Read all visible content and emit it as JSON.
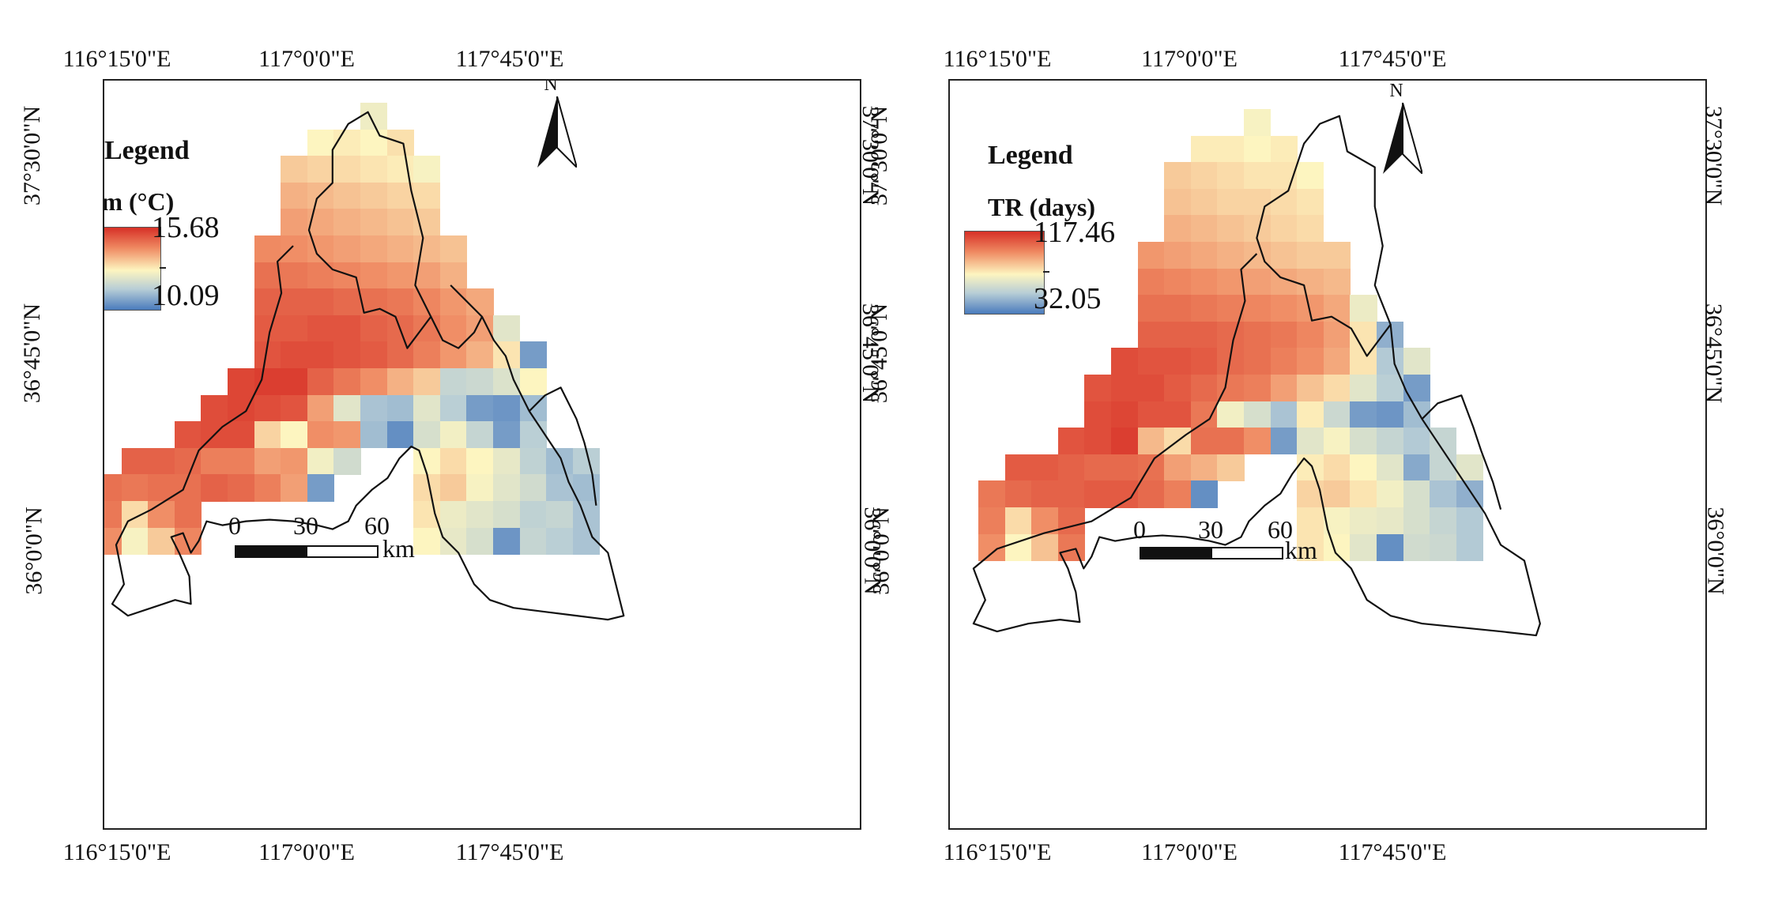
{
  "colors": {
    "high": "#d73027",
    "mid_high": "#ef8a62",
    "mid": "#fdf5c0",
    "mid_low": "#b7cdd6",
    "low": "#4a7bbd"
  },
  "panels": [
    {
      "id": "left",
      "legend_title": "Legend",
      "variable": "Tm (°C)",
      "max_label": "15.68",
      "min_label": "10.09",
      "north_label": "N",
      "ticks_top": [
        "116°15'0\"E",
        "117°0'0\"E",
        "117°45'0\"E"
      ],
      "ticks_bottom": [
        "116°15'0\"E",
        "117°0'0\"E",
        "117°45'0\"E"
      ],
      "ticks_left": [
        "37°30'0\"N",
        "36°45'0\"N",
        "36°0'0\"N"
      ],
      "ticks_right": [
        "37°30'0\"N",
        "36°45'0\"N",
        "36°0'0\"N"
      ],
      "scale": {
        "labels": [
          "0",
          "30",
          "60"
        ],
        "unit": "km"
      },
      "grid_values": [
        [
          "",
          "",
          "",
          "",
          "",
          "",
          "",
          "",
          "",
          "",
          "0.45",
          "",
          "",
          "",
          "",
          "",
          "",
          "",
          "",
          ""
        ],
        [
          "",
          "",
          "",
          "",
          "",
          "",
          "",
          "",
          "0.50",
          "0.52",
          "0.50",
          "0.55",
          "",
          "",
          "",
          "",
          "",
          "",
          "",
          ""
        ],
        [
          "",
          "",
          "",
          "",
          "",
          "",
          "",
          "0.60",
          "0.58",
          "0.56",
          "0.54",
          "0.52",
          "0.48",
          "",
          "",
          "",
          "",
          "",
          "",
          ""
        ],
        [
          "",
          "",
          "",
          "",
          "",
          "",
          "",
          "0.66",
          "0.64",
          "0.62",
          "0.60",
          "0.58",
          "0.56",
          "",
          "",
          "",
          "",
          "",
          "",
          ""
        ],
        [
          "",
          "",
          "",
          "",
          "",
          "",
          "",
          "0.70",
          "0.68",
          "0.66",
          "0.64",
          "0.62",
          "0.60",
          "",
          "",
          "",
          "",
          "",
          "",
          ""
        ],
        [
          "",
          "",
          "",
          "",
          "",
          "",
          "0.75",
          "0.74",
          "0.72",
          "0.70",
          "0.68",
          "0.66",
          "0.64",
          "0.62",
          "",
          "",
          "",
          "",
          "",
          ""
        ],
        [
          "",
          "",
          "",
          "",
          "",
          "",
          "0.82",
          "0.80",
          "0.78",
          "0.76",
          "0.74",
          "0.72",
          "0.70",
          "0.66",
          "",
          "",
          "",
          "",
          "",
          ""
        ],
        [
          "",
          "",
          "",
          "",
          "",
          "",
          "0.86",
          "0.86",
          "0.86",
          "0.84",
          "0.82",
          "0.80",
          "0.76",
          "0.72",
          "0.68",
          "",
          "",
          "",
          "",
          ""
        ],
        [
          "",
          "",
          "",
          "",
          "",
          "",
          "0.88",
          "0.88",
          "0.90",
          "0.90",
          "0.86",
          "0.84",
          "0.80",
          "0.74",
          "0.70",
          "0.40",
          "",
          "",
          "",
          ""
        ],
        [
          "",
          "",
          "",
          "",
          "",
          "",
          "0.90",
          "0.92",
          "0.92",
          "0.90",
          "0.88",
          "0.84",
          "0.78",
          "0.72",
          "0.66",
          "0.54",
          "0.10",
          "",
          "",
          ""
        ],
        [
          "",
          "",
          "",
          "",
          "",
          "0.94",
          "0.96",
          "0.96",
          "0.86",
          "0.80",
          "0.74",
          "0.66",
          "0.60",
          "0.30",
          "0.32",
          "0.38",
          "0.50",
          "",
          "",
          ""
        ],
        [
          "",
          "",
          "",
          "",
          "0.92",
          "0.94",
          "0.92",
          "0.90",
          "0.70",
          "0.40",
          "0.22",
          "0.20",
          "0.40",
          "0.26",
          "0.10",
          "0.08",
          "0.20",
          "",
          "",
          ""
        ],
        [
          "",
          "",
          "",
          "0.90",
          "0.92",
          "0.92",
          "0.58",
          "0.50",
          "0.74",
          "0.72",
          "0.20",
          "0.06",
          "0.36",
          "0.46",
          "0.30",
          "0.10",
          "0.26",
          "",
          "",
          ""
        ],
        [
          "",
          "0.86",
          "0.86",
          "0.84",
          "0.78",
          "0.78",
          "0.70",
          "0.72",
          "0.46",
          "0.34",
          "",
          "",
          "0.50",
          "0.56",
          "0.50",
          "0.42",
          "0.28",
          "0.20",
          "0.26",
          ""
        ],
        [
          "0.82",
          "0.80",
          "0.82",
          "0.82",
          "0.86",
          "0.84",
          "0.78",
          "0.70",
          "0.10",
          "",
          "",
          "",
          "0.56",
          "0.60",
          "0.48",
          "0.40",
          "0.34",
          "0.22",
          "0.20",
          ""
        ],
        [
          "0.80",
          "0.56",
          "0.74",
          "0.82",
          "",
          "",
          "",
          "",
          "",
          "",
          "",
          "",
          "0.54",
          "0.44",
          "0.40",
          "0.36",
          "0.28",
          "0.30",
          "0.22",
          ""
        ],
        [
          "0.74",
          "0.48",
          "0.60",
          "0.76",
          "",
          "",
          "",
          "",
          "",
          "",
          "",
          "",
          "0.50",
          "0.42",
          "0.36",
          "0.08",
          "0.30",
          "0.26",
          "0.22",
          ""
        ]
      ]
    },
    {
      "id": "right",
      "legend_title": "Legend",
      "variable": "TR (days)",
      "max_label": "117.46",
      "min_label": "32.05",
      "north_label": "N",
      "ticks_top": [
        "116°15'0\"E",
        "117°0'0\"E",
        "117°45'0\"E"
      ],
      "ticks_bottom": [
        "116°15'0\"E",
        "117°0'0\"E",
        "117°45'0\"E"
      ],
      "ticks_left": [
        "37°30'0\"N",
        "36°45'0\"N",
        "36°0'0\"N"
      ],
      "ticks_right": [
        "37°30'0\"N",
        "36°45'0\"N",
        "36°0'0\"N"
      ],
      "scale": {
        "labels": [
          "0",
          "30",
          "60"
        ],
        "unit": "km"
      },
      "grid_values": [
        [
          "",
          "",
          "",
          "",
          "",
          "",
          "",
          "",
          "",
          "",
          "0.48",
          "",
          "",
          "",
          "",
          "",
          "",
          "",
          "",
          ""
        ],
        [
          "",
          "",
          "",
          "",
          "",
          "",
          "",
          "",
          "0.52",
          "0.52",
          "0.50",
          "0.52",
          "",
          "",
          "",
          "",
          "",
          "",
          "",
          ""
        ],
        [
          "",
          "",
          "",
          "",
          "",
          "",
          "",
          "0.60",
          "0.58",
          "0.56",
          "0.54",
          "0.54",
          "0.50",
          "",
          "",
          "",
          "",
          "",
          "",
          ""
        ],
        [
          "",
          "",
          "",
          "",
          "",
          "",
          "",
          "0.62",
          "0.60",
          "0.58",
          "0.58",
          "0.56",
          "0.54",
          "",
          "",
          "",
          "",
          "",
          "",
          ""
        ],
        [
          "",
          "",
          "",
          "",
          "",
          "",
          "",
          "0.66",
          "0.64",
          "0.62",
          "0.60",
          "0.58",
          "0.56",
          "",
          "",
          "",
          "",
          "",
          "",
          ""
        ],
        [
          "",
          "",
          "",
          "",
          "",
          "",
          "0.72",
          "0.70",
          "0.68",
          "0.66",
          "0.64",
          "0.62",
          "0.60",
          "0.60",
          "",
          "",
          "",
          "",
          "",
          ""
        ],
        [
          "",
          "",
          "",
          "",
          "",
          "",
          "0.78",
          "0.76",
          "0.74",
          "0.72",
          "0.70",
          "0.68",
          "0.66",
          "0.64",
          "",
          "",
          "",
          "",
          "",
          ""
        ],
        [
          "",
          "",
          "",
          "",
          "",
          "",
          "0.82",
          "0.82",
          "0.80",
          "0.78",
          "0.76",
          "0.74",
          "0.72",
          "0.68",
          "0.44",
          "",
          "",
          "",
          "",
          ""
        ],
        [
          "",
          "",
          "",
          "",
          "",
          "",
          "0.86",
          "0.86",
          "0.86",
          "0.84",
          "0.82",
          "0.80",
          "0.76",
          "0.70",
          "0.54",
          "0.16",
          "",
          "",
          "",
          ""
        ],
        [
          "",
          "",
          "",
          "",
          "",
          "0.92",
          "0.90",
          "0.90",
          "0.88",
          "0.84",
          "0.82",
          "0.78",
          "0.74",
          "0.68",
          "0.54",
          "0.24",
          "0.40",
          "",
          "",
          ""
        ],
        [
          "",
          "",
          "",
          "",
          "0.90",
          "0.92",
          "0.92",
          "0.88",
          "0.84",
          "0.80",
          "0.78",
          "0.70",
          "0.62",
          "0.56",
          "0.40",
          "0.26",
          "0.10",
          "",
          "",
          ""
        ],
        [
          "",
          "",
          "",
          "",
          "0.92",
          "0.94",
          "0.90",
          "0.90",
          "0.80",
          "0.46",
          "0.36",
          "0.22",
          "0.52",
          "0.32",
          "0.10",
          "0.08",
          "0.20",
          "",
          "",
          ""
        ],
        [
          "",
          "",
          "",
          "0.90",
          "0.92",
          "0.96",
          "0.64",
          "0.56",
          "0.82",
          "0.82",
          "0.74",
          "0.10",
          "0.40",
          "0.48",
          "0.36",
          "0.30",
          "0.24",
          "0.30",
          "",
          ""
        ],
        [
          "",
          "0.88",
          "0.88",
          "0.86",
          "0.84",
          "0.84",
          "0.82",
          "0.70",
          "0.66",
          "0.60",
          "",
          "",
          "0.52",
          "0.56",
          "0.50",
          "0.40",
          "0.14",
          "0.30",
          "0.40",
          ""
        ],
        [
          "0.80",
          "0.84",
          "0.86",
          "0.86",
          "0.88",
          "0.88",
          "0.84",
          "0.78",
          "0.06",
          "",
          "",
          "",
          "0.58",
          "0.60",
          "0.54",
          "0.46",
          "0.36",
          "0.22",
          "0.16",
          ""
        ],
        [
          "0.78",
          "0.56",
          "0.74",
          "0.84",
          "",
          "",
          "",
          "",
          "",
          "",
          "",
          "",
          "0.54",
          "0.48",
          "0.44",
          "0.42",
          "0.36",
          "0.30",
          "0.24",
          ""
        ],
        [
          "0.74",
          "0.50",
          "0.62",
          "0.80",
          "",
          "",
          "",
          "",
          "",
          "",
          "",
          "",
          "0.54",
          "0.50",
          "0.40",
          "0.06",
          "0.34",
          "0.32",
          "0.24",
          ""
        ]
      ]
    }
  ]
}
